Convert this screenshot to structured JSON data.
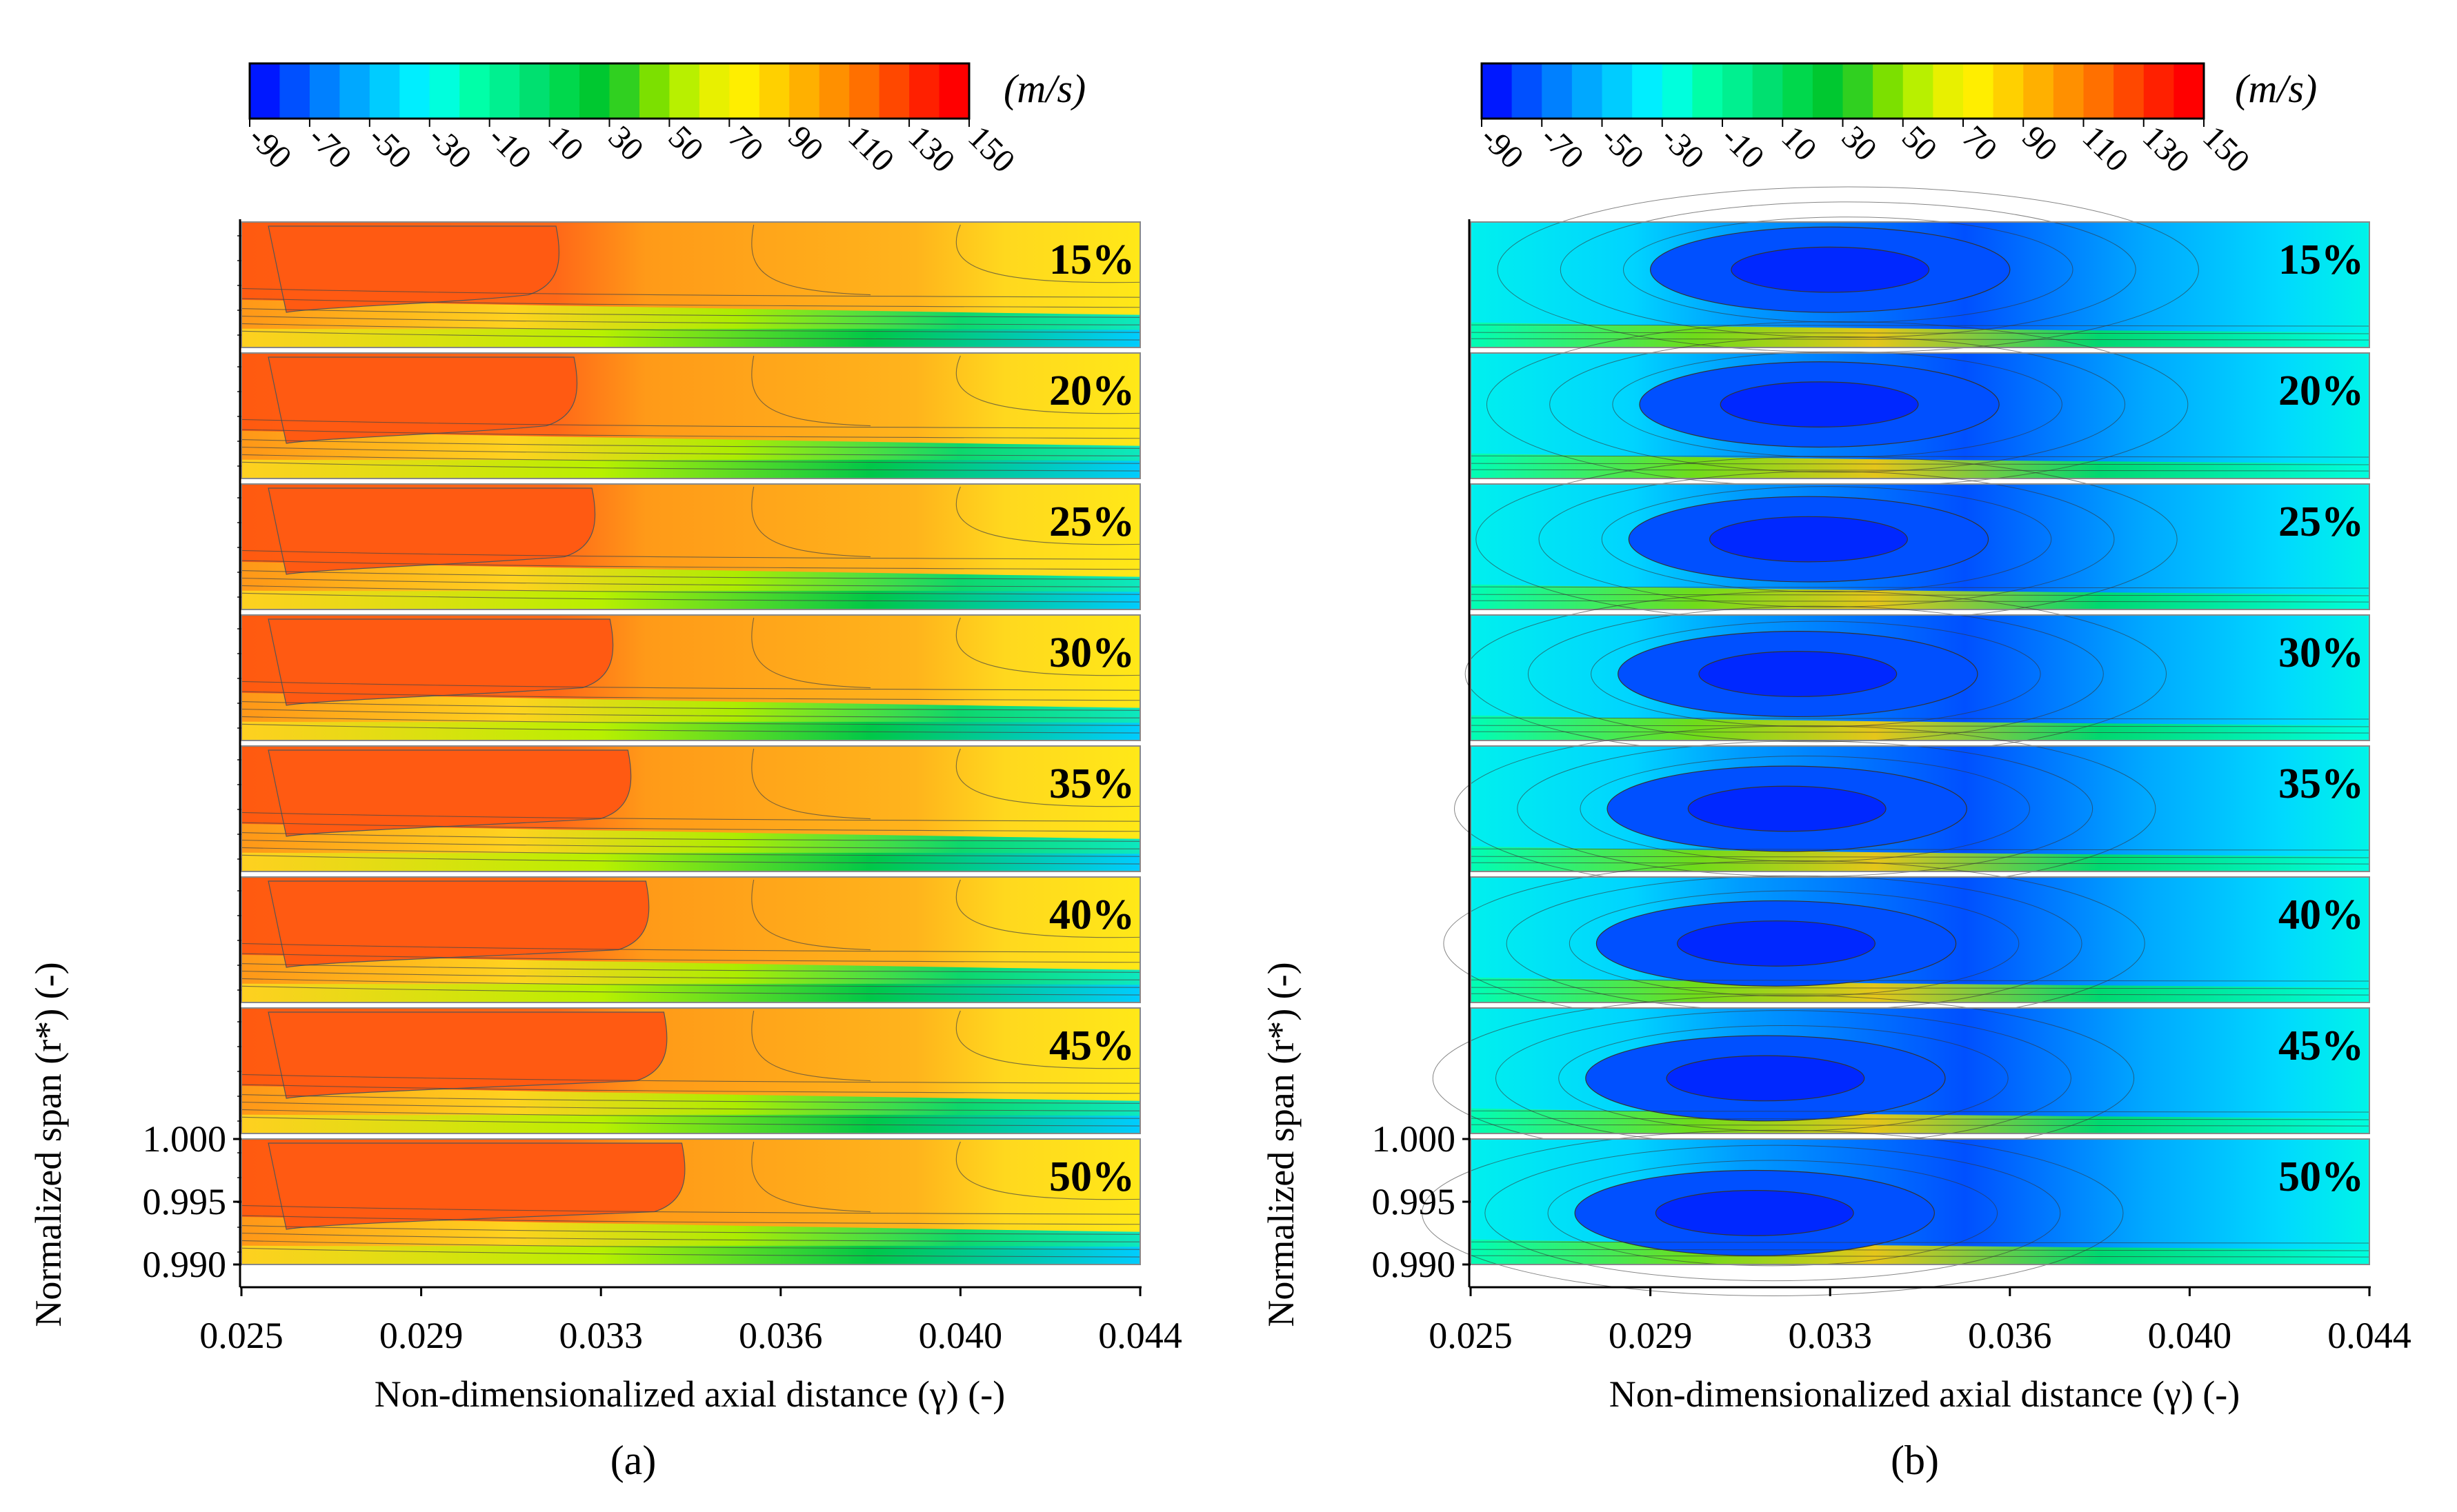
{
  "colorbar": {
    "ticks": [
      "-90",
      "-70",
      "-50",
      "-30",
      "-10",
      "10",
      "30",
      "50",
      "70",
      "90",
      "110",
      "130",
      "150"
    ],
    "unit": "(m/s)",
    "colors": [
      "#0018ff",
      "#0050ff",
      "#0080ff",
      "#00a8ff",
      "#00ccff",
      "#00eeff",
      "#00ffdd",
      "#00ffa8",
      "#00f090",
      "#00e070",
      "#00d84c",
      "#00c830",
      "#30d020",
      "#7ce000",
      "#b8f000",
      "#e8f000",
      "#ffee00",
      "#ffd000",
      "#ffb000",
      "#ff9000",
      "#ff7000",
      "#ff4800",
      "#ff2000",
      "#ff0000"
    ]
  },
  "chart_data": [
    {
      "type": "heatmap",
      "panel_label": "(a)",
      "xlabel": "Non-dimensionalized axial distance (γ) (-)",
      "ylabel": "Normalized span (r*) (-)",
      "x_ticks": [
        "0.025",
        "0.029",
        "0.033",
        "0.036",
        "0.040",
        "0.044"
      ],
      "y_ticks": [
        "1.000",
        "0.995",
        "0.990"
      ],
      "xlim": [
        0.025,
        0.044
      ],
      "ylim": [
        0.99,
        1.0
      ],
      "colorbar_range": [
        -90,
        150
      ],
      "colorbar_unit": "(m/s)",
      "strips": [
        "15%",
        "20%",
        "25%",
        "30%",
        "35%",
        "40%",
        "45%",
        "50%"
      ],
      "description_field": "velocity component, predominantly 70–150 m/s with lower values near the wall"
    },
    {
      "type": "heatmap",
      "panel_label": "(b)",
      "xlabel": "Non-dimensionalized axial distance (γ) (-)",
      "ylabel": "Normalized span (r*) (-)",
      "x_ticks": [
        "0.025",
        "0.029",
        "0.033",
        "0.036",
        "0.040",
        "0.044"
      ],
      "y_ticks": [
        "1.000",
        "0.995",
        "0.990"
      ],
      "xlim": [
        0.025,
        0.044
      ],
      "ylim": [
        0.99,
        1.0
      ],
      "colorbar_range": [
        -90,
        150
      ],
      "colorbar_unit": "(m/s)",
      "strips": [
        "15%",
        "20%",
        "25%",
        "30%",
        "35%",
        "40%",
        "45%",
        "50%"
      ],
      "description_field": "velocity component, predominantly -90 to -10 m/s with higher values near the wall"
    }
  ]
}
